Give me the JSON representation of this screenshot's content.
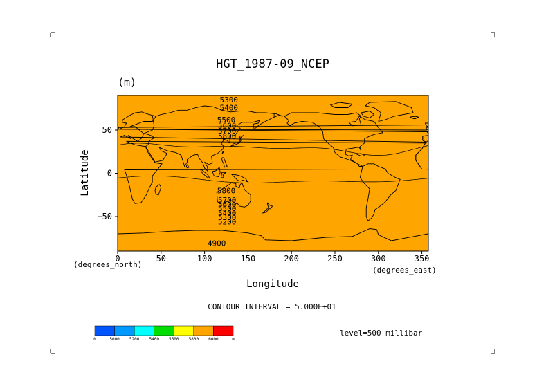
{
  "chart_data": {
    "type": "heatmap",
    "title": "HGT_1987-09_NCEP",
    "units": "(m)",
    "xlabel": "Longitude",
    "ylabel": "Latitude",
    "x_units_label": "(degrees_east)",
    "y_units_label": "(degrees_north)",
    "xlim": [
      0,
      357.5
    ],
    "ylim": [
      -90,
      90
    ],
    "x_ticks": [
      0,
      50,
      100,
      150,
      200,
      250,
      300,
      350
    ],
    "y_ticks": [
      50,
      0,
      -50
    ],
    "y_tick_labels": [
      "50",
      "0",
      "−50"
    ],
    "contour_interval_text": "CONTOUR INTERVAL = 5.000E+01",
    "level_text": "level=500 millibar",
    "colorbar": {
      "colors": [
        "#0055ff",
        "#0099ff",
        "#00ffff",
        "#00dd00",
        "#ffff00",
        "#ffa500",
        "#ff0000"
      ],
      "labels": [
        "0",
        "5000",
        "5200",
        "5400",
        "5600",
        "5800",
        "6000",
        "∞"
      ]
    },
    "contour_labels": [
      {
        "text": "5300",
        "lon": 128,
        "lat": 82
      },
      {
        "text": "5400",
        "lon": 128,
        "lat": 73
      },
      {
        "text": "5500",
        "lon": 125,
        "lat": 59
      },
      {
        "text": "5600",
        "lon": 126,
        "lat": 52
      },
      {
        "text": "5700",
        "lon": 126,
        "lat": 46
      },
      {
        "text": "5800",
        "lon": 126,
        "lat": 40
      },
      {
        "text": "5800",
        "lon": 125,
        "lat": -23
      },
      {
        "text": "5700",
        "lon": 126,
        "lat": -34
      },
      {
        "text": "5600",
        "lon": 126,
        "lat": -39
      },
      {
        "text": "5500",
        "lon": 126,
        "lat": -44
      },
      {
        "text": "5400",
        "lon": 126,
        "lat": -49
      },
      {
        "text": "5300",
        "lon": 126,
        "lat": -54
      },
      {
        "text": "5200",
        "lon": 126,
        "lat": -59
      },
      {
        "text": "4900",
        "lon": 114,
        "lat": -84
      }
    ],
    "bands": [
      {
        "level": 4900,
        "color": "#0055ff"
      },
      {
        "level": 5000,
        "color": "#0055ff"
      },
      {
        "level": 5100,
        "color": "#0055ff"
      },
      {
        "level": 5200,
        "color": "#0099ff"
      },
      {
        "level": 5300,
        "color": "#0099ff"
      },
      {
        "level": 5400,
        "color": "#00ffff"
      },
      {
        "level": 5500,
        "color": "#00dd00"
      },
      {
        "level": 5600,
        "color": "#00dd00"
      },
      {
        "level": 5700,
        "color": "#ffff00"
      },
      {
        "level": 5800,
        "color": "#ffa500"
      }
    ]
  }
}
